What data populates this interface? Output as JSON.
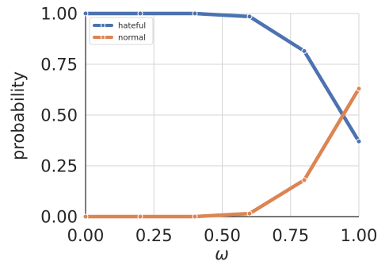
{
  "chart_data": {
    "type": "line",
    "xlabel": "ω",
    "ylabel": "probability",
    "xlim": [
      0,
      1
    ],
    "ylim": [
      0,
      1
    ],
    "x": [
      0.0,
      0.2,
      0.4,
      0.6,
      0.8,
      1.0
    ],
    "x_ticks": [
      "0.00",
      "0.25",
      "0.50",
      "0.75",
      "1.00"
    ],
    "y_ticks": [
      "0.00",
      "0.25",
      "0.50",
      "0.75",
      "1.00"
    ],
    "grid": true,
    "legend_position": "top-left",
    "series": [
      {
        "name": "hateful",
        "color": "#4c72b0",
        "values": [
          1.0,
          1.0,
          1.0,
          0.985,
          0.815,
          0.37
        ]
      },
      {
        "name": "normal",
        "color": "#dd8452",
        "values": [
          0.0,
          0.0,
          0.0,
          0.015,
          0.18,
          0.63
        ]
      }
    ]
  }
}
